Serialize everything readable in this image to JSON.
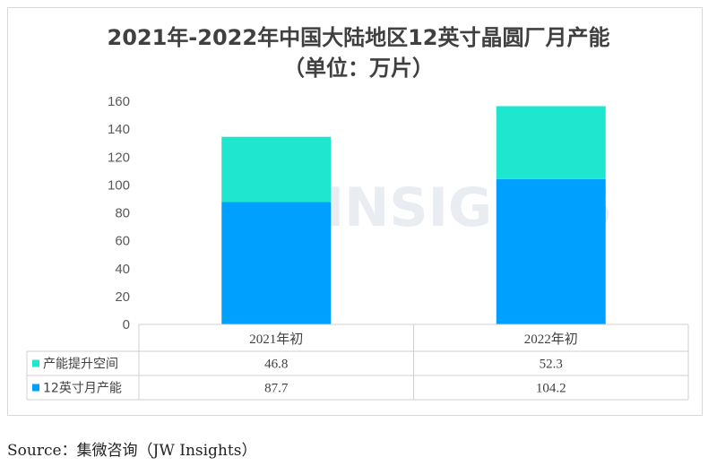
{
  "title_line1": "2021年-2022年中国大陆地区12英寸晶圆厂月产能",
  "title_line2": "（单位：万片）",
  "watermark": "JW INSIGHTS",
  "source": "Source：集微咨询（JW Insights）",
  "colors": {
    "top": "#1ee6cf",
    "bottom": "#00a0ff"
  },
  "chart_data": {
    "type": "bar",
    "stacked": true,
    "categories": [
      "2021年初",
      "2022年初"
    ],
    "series": [
      {
        "name": "12英寸月产能",
        "values": [
          87.7,
          104.2
        ]
      },
      {
        "name": "产能提升空间",
        "values": [
          46.8,
          52.3
        ]
      }
    ],
    "ylim": [
      0,
      160
    ],
    "yticks": [
      "0",
      "20",
      "40",
      "60",
      "80",
      "100",
      "120",
      "140",
      "160"
    ],
    "table_rows": [
      {
        "label": "产能提升空间",
        "values": [
          "46.8",
          "52.3"
        ]
      },
      {
        "label": "12英寸月产能",
        "values": [
          "87.7",
          "104.2"
        ]
      }
    ],
    "grid": false,
    "legend": "table"
  }
}
